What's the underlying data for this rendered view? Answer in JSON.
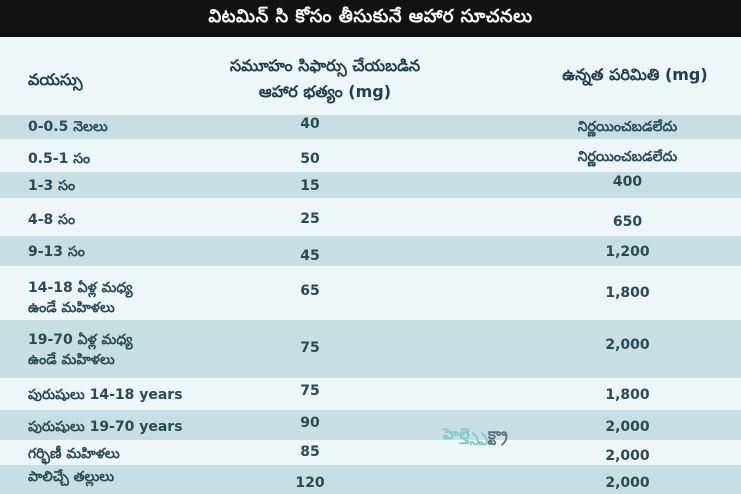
{
  "title": "విటమిన్ సి కోసం తీసుకునే ఆహార సూచనలు",
  "headers": {
    "age": "వయస్సు",
    "rda_line1": "సమూహం సిఫార్సు చేయబడిన",
    "rda_line2": "ఆహార భత్యం (mg)",
    "ul": "ఉన్నత పరిమితి (mg)"
  },
  "rows": [
    {
      "age": "0-0.5 నెలలు",
      "rda": "40",
      "ul": "నిర్ణయించబడలేదు"
    },
    {
      "age": "0.5-1 సం",
      "rda": "50",
      "ul": "నిర్ణయించబడలేదు"
    },
    {
      "age": "1-3 సం",
      "rda": "15",
      "ul": "400"
    },
    {
      "age": "4-8 సం",
      "rda": "25",
      "ul": "650"
    },
    {
      "age": "9-13 సం",
      "rda": "45",
      "ul": "1,200"
    },
    {
      "age_line1": "14-18 ఏళ్ల మధ్య",
      "age_line2": "ఉండే మహిళలు",
      "rda": "65",
      "ul": "1,800"
    },
    {
      "age_line1": "19-70 ఏళ్ల మధ్య",
      "age_line2": "ఉండే మహిళలు",
      "rda": "75",
      "ul": "2,000"
    },
    {
      "age": "పురుషులు 14-18 years",
      "rda": "75",
      "ul": "1,800"
    },
    {
      "age": "పురుషులు 19-70 years",
      "rda": "90",
      "ul": "2,000"
    },
    {
      "age": "గర్భిణీ మహిళలు",
      "rda": "85",
      "ul": "2,000"
    },
    {
      "age": "పాలిచ్చే తల్లులు",
      "rda": "120",
      "ul": "2,000"
    }
  ],
  "watermark": {
    "part1": "హెల్త్",
    "part2": "స్పెక్ట్రా"
  }
}
